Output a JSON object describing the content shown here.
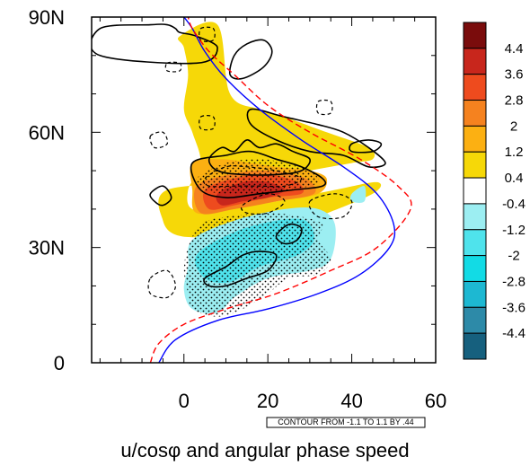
{
  "chart_data": {
    "type": "heatmap",
    "title": "",
    "xlabel": "u/cosφ and angular phase speed",
    "ylabel": "",
    "xlim": [
      -22,
      60
    ],
    "ylim": [
      0,
      90
    ],
    "x_ticks": [
      0,
      20,
      40,
      60
    ],
    "x_tick_labels": [
      "0",
      "20",
      "40",
      "60"
    ],
    "y_ticks": [
      0,
      30,
      60,
      90
    ],
    "y_tick_labels": [
      "0",
      "30N",
      "60N",
      "90N"
    ],
    "contour_info": "CONTOUR FROM -1.1 TO 1.1 BY .44",
    "colorbar": {
      "levels": [
        4.4,
        3.6,
        2.8,
        2,
        1.2,
        0.4,
        -0.4,
        -1.2,
        -2,
        -2.8,
        -3.6,
        -4.4
      ],
      "labels": [
        "4.4",
        "3.6",
        "2.8",
        "2",
        "1.2",
        "0.4",
        "-0.4",
        "-1.2",
        "-2",
        "-2.8",
        "-3.6",
        "-4.4"
      ],
      "colors": [
        "#7a0c0c",
        "#c8261c",
        "#ee4b1e",
        "#f5821f",
        "#fcb012",
        "#f6d808",
        "#ffffff",
        "#9ceef2",
        "#4fe3ec",
        "#12dbe5",
        "#1db8d2",
        "#2d8aa8",
        "#16607e"
      ]
    },
    "filled_regions": [
      {
        "level": 0.4,
        "color": "#f6d808",
        "polygon": [
          [
            -1,
            85
          ],
          [
            8,
            88
          ],
          [
            11,
            70
          ],
          [
            18,
            66
          ],
          [
            24,
            64
          ],
          [
            34,
            60
          ],
          [
            44,
            56
          ],
          [
            45,
            53
          ],
          [
            40,
            52
          ],
          [
            30,
            50
          ],
          [
            22,
            48
          ],
          [
            17,
            47
          ],
          [
            -4,
            45
          ],
          [
            -5,
            37
          ],
          [
            -1,
            33
          ],
          [
            10,
            33
          ],
          [
            22,
            34
          ],
          [
            32,
            38
          ],
          [
            45,
            44
          ],
          [
            46,
            47
          ],
          [
            36,
            45
          ],
          [
            22,
            42
          ],
          [
            10,
            40
          ],
          [
            2,
            40
          ],
          [
            1,
            45
          ],
          [
            4,
            52
          ],
          [
            2,
            60
          ],
          [
            0,
            66
          ],
          [
            1,
            75
          ],
          [
            0,
            82
          ]
        ]
      },
      {
        "level": 1.2,
        "color": "#fcb012",
        "polygon": [
          [
            2,
            52
          ],
          [
            9,
            53
          ],
          [
            16,
            52
          ],
          [
            22,
            51
          ],
          [
            30,
            50
          ],
          [
            34,
            48
          ],
          [
            32,
            44
          ],
          [
            22,
            42
          ],
          [
            12,
            40
          ],
          [
            3,
            39
          ],
          [
            2,
            45
          ]
        ]
      },
      {
        "level": 2.0,
        "color": "#f5821f",
        "polygon": [
          [
            3,
            46
          ],
          [
            11,
            49
          ],
          [
            20,
            50
          ],
          [
            29,
            48
          ],
          [
            31,
            44
          ],
          [
            22,
            42
          ],
          [
            12,
            40
          ],
          [
            4,
            39
          ]
        ]
      },
      {
        "level": 2.8,
        "color": "#ee4b1e",
        "polygon": [
          [
            5,
            45
          ],
          [
            12,
            48
          ],
          [
            20,
            49
          ],
          [
            27,
            47
          ],
          [
            28,
            44
          ],
          [
            20,
            43
          ],
          [
            12,
            41
          ],
          [
            6,
            40
          ]
        ]
      },
      {
        "level": 3.6,
        "color": "#c8261c",
        "polygon": [
          [
            8,
            44
          ],
          [
            14,
            47
          ],
          [
            20,
            47
          ],
          [
            24,
            45
          ],
          [
            20,
            43
          ],
          [
            14,
            42
          ],
          [
            9,
            41
          ]
        ]
      },
      {
        "level": -0.4,
        "color": "#9ceef2",
        "polygon": [
          [
            2,
            32
          ],
          [
            12,
            37
          ],
          [
            24,
            40
          ],
          [
            32,
            40
          ],
          [
            36,
            36
          ],
          [
            35,
            27
          ],
          [
            30,
            24
          ],
          [
            20,
            22
          ],
          [
            12,
            17
          ],
          [
            8,
            13
          ],
          [
            2,
            14
          ],
          [
            0,
            19
          ],
          [
            1,
            25
          ]
        ]
      },
      {
        "level": -1.2,
        "color": "#4fe3ec",
        "polygon": [
          [
            3,
            28
          ],
          [
            12,
            34
          ],
          [
            22,
            37
          ],
          [
            29,
            37
          ],
          [
            31,
            32
          ],
          [
            27,
            28
          ],
          [
            18,
            25
          ],
          [
            11,
            21
          ],
          [
            5,
            22
          ]
        ]
      },
      {
        "level": -0.4,
        "color": "#9ceef2",
        "polygon": [
          [
            40,
            44
          ],
          [
            43,
            46
          ],
          [
            43,
            42
          ],
          [
            40,
            42
          ]
        ]
      }
    ],
    "series": [
      {
        "name": "",
        "color": "#0000ff",
        "dash": "solid",
        "x": [
          -6,
          -2,
          8,
          20,
          32,
          42,
          49,
          50,
          46,
          38,
          28,
          18,
          10,
          5,
          2,
          0
        ],
        "y": [
          0,
          6,
          11,
          14,
          18,
          23,
          30,
          36,
          44,
          51,
          58,
          66,
          74,
          81,
          87,
          90
        ]
      },
      {
        "name": "",
        "color": "#ff0000",
        "dash": "dashed",
        "x": [
          -8,
          -6,
          0,
          10,
          22,
          35,
          46,
          54,
          51,
          42,
          30,
          20,
          12,
          6,
          2,
          1
        ],
        "y": [
          0,
          5,
          10,
          14,
          18,
          24,
          30,
          40,
          46,
          53,
          60,
          67,
          75,
          81,
          87,
          90
        ]
      }
    ],
    "contours_positive": [
      [
        [
          -20,
          87
        ],
        [
          -8,
          88
        ],
        [
          -4,
          88
        ],
        [
          -2,
          87
        ],
        [
          -1,
          86
        ],
        [
          3,
          85
        ],
        [
          8,
          82
        ],
        [
          3,
          78
        ],
        [
          -20,
          80
        ]
      ],
      [
        [
          12,
          80
        ],
        [
          15,
          83
        ],
        [
          19,
          84
        ],
        [
          21,
          81
        ],
        [
          19,
          77
        ],
        [
          14,
          74
        ],
        [
          11,
          75
        ]
      ],
      [
        [
          16,
          66
        ],
        [
          24,
          64
        ],
        [
          32,
          62
        ],
        [
          38,
          60
        ],
        [
          44,
          56
        ],
        [
          48,
          52
        ],
        [
          44,
          51
        ],
        [
          38,
          54
        ],
        [
          30,
          55
        ],
        [
          22,
          58
        ],
        [
          16,
          62
        ]
      ],
      [
        [
          2,
          52
        ],
        [
          10,
          54
        ],
        [
          16,
          55
        ],
        [
          22,
          53
        ],
        [
          28,
          51
        ],
        [
          33,
          48
        ],
        [
          33,
          46
        ],
        [
          26,
          45
        ],
        [
          18,
          44
        ],
        [
          10,
          43
        ],
        [
          4,
          45
        ]
      ],
      [
        [
          6,
          53
        ],
        [
          9,
          56
        ],
        [
          12,
          55
        ],
        [
          15,
          58
        ],
        [
          18,
          56
        ],
        [
          22,
          57
        ],
        [
          26,
          55
        ],
        [
          30,
          53
        ],
        [
          28,
          50
        ],
        [
          22,
          49
        ],
        [
          14,
          49
        ],
        [
          8,
          50
        ]
      ],
      [
        [
          -8,
          44
        ],
        [
          -5,
          46
        ],
        [
          -3,
          43
        ],
        [
          -5,
          41
        ],
        [
          -7,
          42
        ]
      ],
      [
        [
          40,
          55
        ],
        [
          45,
          55
        ],
        [
          47,
          57
        ],
        [
          44,
          58
        ],
        [
          40,
          57
        ]
      ],
      [
        [
          22,
          33
        ],
        [
          25,
          36
        ],
        [
          28,
          35
        ],
        [
          27,
          32
        ],
        [
          24,
          31
        ]
      ],
      [
        [
          5,
          22
        ],
        [
          10,
          25
        ],
        [
          14,
          28
        ],
        [
          18,
          29
        ],
        [
          22,
          28
        ],
        [
          20,
          24
        ],
        [
          15,
          22
        ],
        [
          10,
          20
        ],
        [
          6,
          20
        ]
      ]
    ],
    "contours_negative": [
      [
        [
          5,
          48
        ],
        [
          10,
          51
        ],
        [
          15,
          51
        ],
        [
          22,
          50
        ],
        [
          28,
          48
        ],
        [
          24,
          46
        ],
        [
          18,
          46
        ],
        [
          12,
          46
        ],
        [
          6,
          46
        ]
      ],
      [
        [
          14,
          41
        ],
        [
          20,
          44
        ],
        [
          24,
          42
        ],
        [
          20,
          39
        ],
        [
          15,
          39
        ]
      ],
      [
        [
          30,
          42
        ],
        [
          36,
          44
        ],
        [
          40,
          42
        ],
        [
          38,
          38
        ],
        [
          32,
          38
        ]
      ],
      [
        [
          -8,
          22
        ],
        [
          -4,
          24
        ],
        [
          -2,
          20
        ],
        [
          -4,
          17
        ],
        [
          -8,
          18
        ]
      ],
      [
        [
          -8,
          59
        ],
        [
          -5,
          60
        ],
        [
          -4,
          57
        ],
        [
          -7,
          56
        ]
      ],
      [
        [
          4,
          64
        ],
        [
          7,
          64
        ],
        [
          7,
          61
        ],
        [
          4,
          61
        ]
      ],
      [
        [
          32,
          68
        ],
        [
          35,
          68
        ],
        [
          35,
          65
        ],
        [
          32,
          65
        ]
      ],
      [
        [
          -4,
          78
        ],
        [
          -1,
          78
        ],
        [
          -1,
          76
        ],
        [
          -4,
          76
        ]
      ],
      [
        [
          4,
          87
        ],
        [
          7,
          87
        ],
        [
          7,
          84
        ],
        [
          4,
          84
        ]
      ]
    ],
    "stippled_regions": [
      [
        [
          2,
          14
        ],
        [
          8,
          12
        ],
        [
          14,
          14
        ],
        [
          20,
          18
        ],
        [
          25,
          22
        ],
        [
          32,
          23
        ],
        [
          35,
          27
        ],
        [
          32,
          32
        ],
        [
          33,
          36
        ],
        [
          28,
          38
        ],
        [
          20,
          39
        ],
        [
          10,
          38
        ],
        [
          4,
          36
        ],
        [
          1,
          30
        ],
        [
          0,
          24
        ],
        [
          1,
          18
        ]
      ],
      [
        [
          3,
          48
        ],
        [
          10,
          52
        ],
        [
          18,
          53
        ],
        [
          24,
          52
        ],
        [
          30,
          50
        ],
        [
          32,
          47
        ],
        [
          26,
          45
        ],
        [
          18,
          44
        ],
        [
          10,
          44
        ],
        [
          5,
          45
        ]
      ]
    ]
  }
}
